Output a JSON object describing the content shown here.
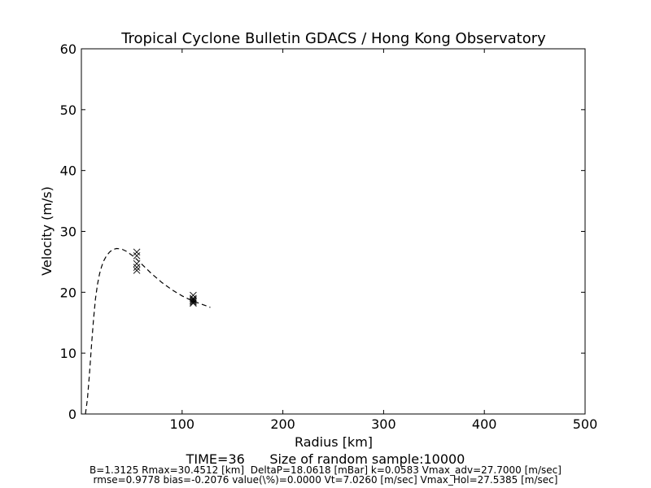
{
  "chart_data": {
    "type": "line",
    "title": "Tropical Cyclone Bulletin GDACS / Hong Kong Observatory",
    "xlabel": "Radius [km]",
    "ylabel": "Velocity (m/s)",
    "xlim": [
      0,
      500
    ],
    "ylim": [
      0,
      60
    ],
    "xticks": [
      100,
      200,
      300,
      400,
      500
    ],
    "yticks": [
      0,
      10,
      20,
      30,
      40,
      50,
      60
    ],
    "grid": false,
    "series": [
      {
        "style": "dashed-line",
        "color": "#000000",
        "x": [
          4,
          6,
          8,
          10,
          12,
          14,
          16,
          18,
          20,
          22,
          25,
          28,
          31,
          35,
          40,
          45,
          50,
          55,
          60,
          65,
          70,
          75,
          80,
          85,
          90,
          95,
          100,
          105,
          110,
          115,
          120,
          125,
          128
        ],
        "y": [
          0,
          2.4,
          6.5,
          11.2,
          15.5,
          18.9,
          21.3,
          23.0,
          24.2,
          25.1,
          26.0,
          26.6,
          27.0,
          27.2,
          27.1,
          26.7,
          26.1,
          25.4,
          24.6,
          23.8,
          23.0,
          22.3,
          21.6,
          21.0,
          20.4,
          19.9,
          19.4,
          19.0,
          18.6,
          18.3,
          18.0,
          17.7,
          17.5
        ]
      },
      {
        "style": "x-markers",
        "color": "#000000",
        "x": [
          55,
          55,
          55,
          55,
          55,
          111,
          111,
          111,
          111,
          111,
          111
        ],
        "y": [
          26.6,
          26.0,
          24.7,
          24.1,
          23.6,
          19.5,
          19.0,
          18.8,
          18.6,
          18.4,
          18.2
        ]
      }
    ],
    "footer": {
      "line1": "TIME=36      Size of random sample:10000",
      "line2": "B=1.3125 Rmax=30.4512 [km]  DeltaP=18.0618 [mBar] k=0.0583 Vmax_adv=27.7000 [m/sec]",
      "line3": "rmse=0.9778 bias=-0.2076 value(\\%)=0.0000 Vt=7.0260 [m/sec] Vmax_Hol=27.5385 [m/sec]"
    }
  }
}
